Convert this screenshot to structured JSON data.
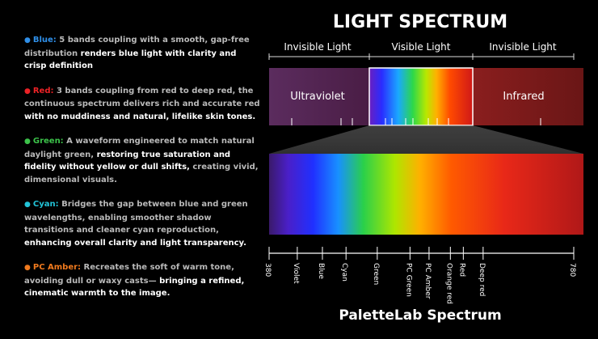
{
  "title": "LIGHT SPECTRUM",
  "bullets": [
    {
      "label": "Blue:",
      "color": "#2f8fe8",
      "segments": [
        {
          "text": "5 bands coupling with a smooth, gap-free distribution",
          "emphasis": false
        },
        {
          "text": "renders blue light with clarity and crisp definition",
          "emphasis": true
        }
      ]
    },
    {
      "label": "Red:",
      "color": "#ec2226",
      "segments": [
        {
          "text": "3 bands coupling from red to deep red, the continuous spectrum delivers rich and accurate red",
          "emphasis": false
        },
        {
          "text": "with no muddiness and natural, lifelike skin tones.",
          "emphasis": true
        }
      ]
    },
    {
      "label": "Green:",
      "color": "#3cc24a",
      "segments": [
        {
          "text": "A waveform engineered to match natural daylight green,",
          "emphasis": false
        },
        {
          "text": "restoring true saturation and fidelity without yellow or dull shifts,",
          "emphasis": true
        },
        {
          "text": "creating vivid, dimensional visuals.",
          "emphasis": false
        }
      ]
    },
    {
      "label": "Cyan:",
      "color": "#22c4d8",
      "segments": [
        {
          "text": "Bridges the gap between blue and green wavelengths, enabling smoother shadow transitions and cleaner cyan reproduction,",
          "emphasis": false
        },
        {
          "text": "enhancing overall clarity and light transparency.",
          "emphasis": true
        }
      ]
    },
    {
      "label": "PC Amber:",
      "color": "#f07a1e",
      "segments": [
        {
          "text": "Recreates the soft of warm tone, avoiding dull or waxy casts—",
          "emphasis": false
        },
        {
          "text": "bringing a refined, cinematic warmth to the image.",
          "emphasis": true
        }
      ]
    }
  ],
  "regions": [
    "Invisible Light",
    "Visible Light",
    "Invisible Light"
  ],
  "bands": [
    "Ultraviolet",
    "Infrared"
  ],
  "axis": {
    "range": [
      380,
      780
    ],
    "ticks": [
      380,
      {
        "value": 417,
        "label": "Violet"
      },
      {
        "value": 450,
        "label": "Blue"
      },
      {
        "value": 481,
        "label": "Cyan"
      },
      {
        "value": 522,
        "label": "Green"
      },
      {
        "value": 565,
        "label": "PC Green"
      },
      {
        "value": 590,
        "label": "PC Amber"
      },
      {
        "value": 618,
        "label": "Orange red"
      },
      {
        "value": 635,
        "label": "Red"
      },
      {
        "value": 661,
        "label": "Deep red"
      },
      780
    ]
  },
  "footer": "PaletteLab Spectrum"
}
